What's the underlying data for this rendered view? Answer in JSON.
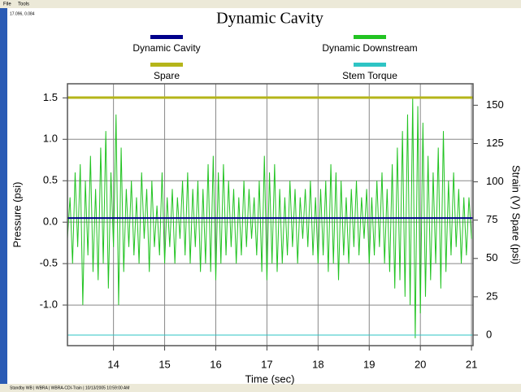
{
  "menu": [
    "File",
    "Tools"
  ],
  "cursor": "17.096, 0.084",
  "status": "Standby WB | WBRA | WBRA-CDI-Train | 10/13/2005 10:59:00 AM",
  "chart_data": {
    "type": "line",
    "title": "Dynamic Cavity",
    "xlabel": "Time (sec)",
    "ylabel": "Pressure (psi)",
    "y2label": "Strain (V) Spare (psi)",
    "xlim": [
      13.1,
      21.03
    ],
    "xticks": [
      14,
      15,
      16,
      17,
      18,
      19,
      20,
      21
    ],
    "ylim": [
      -1.49,
      1.67
    ],
    "yticks": [
      {
        "value": -1,
        "label": "-1.0"
      },
      -0.5,
      {
        "value": 0,
        "label": "0.0"
      },
      0.5,
      {
        "value": 1,
        "label": "1.0"
      },
      1.5
    ],
    "y2lim": [
      -6.9,
      164
    ],
    "y2ticks": [
      0,
      25,
      50,
      75,
      100,
      125,
      150
    ],
    "grid": true,
    "series": [
      {
        "name": "Dynamic Cavity",
        "color": "#00008b",
        "x": [
          13.1,
          21.03
        ],
        "values": [
          0.05,
          0.05
        ]
      },
      {
        "name": "Dynamic Downstream",
        "color": "#22c322",
        "x": [
          13.1,
          13.15,
          13.2,
          13.25,
          13.3,
          13.35,
          13.4,
          13.45,
          13.5,
          13.55,
          13.6,
          13.65,
          13.7,
          13.75,
          13.8,
          13.85,
          13.9,
          13.95,
          14,
          14.05,
          14.1,
          14.15,
          14.2,
          14.25,
          14.3,
          14.35,
          14.4,
          14.45,
          14.5,
          14.55,
          14.6,
          14.65,
          14.7,
          14.75,
          14.8,
          14.85,
          14.9,
          14.95,
          15,
          15.05,
          15.1,
          15.15,
          15.2,
          15.25,
          15.3,
          15.35,
          15.4,
          15.45,
          15.5,
          15.55,
          15.6,
          15.65,
          15.7,
          15.75,
          15.8,
          15.85,
          15.9,
          15.95,
          16,
          16.05,
          16.1,
          16.15,
          16.2,
          16.25,
          16.3,
          16.35,
          16.4,
          16.45,
          16.5,
          16.55,
          16.6,
          16.65,
          16.7,
          16.75,
          16.8,
          16.85,
          16.9,
          16.95,
          17,
          17.05,
          17.1,
          17.15,
          17.2,
          17.25,
          17.3,
          17.35,
          17.4,
          17.45,
          17.5,
          17.55,
          17.6,
          17.65,
          17.7,
          17.75,
          17.8,
          17.85,
          17.9,
          17.95,
          18,
          18.05,
          18.1,
          18.15,
          18.2,
          18.25,
          18.3,
          18.35,
          18.4,
          18.45,
          18.5,
          18.55,
          18.6,
          18.65,
          18.7,
          18.75,
          18.8,
          18.85,
          18.9,
          18.95,
          19,
          19.05,
          19.1,
          19.15,
          19.2,
          19.25,
          19.3,
          19.35,
          19.4,
          19.45,
          19.5,
          19.55,
          19.6,
          19.65,
          19.7,
          19.75,
          19.8,
          19.85,
          19.9,
          19.95,
          20,
          20.05,
          20.1,
          20.15,
          20.2,
          20.25,
          20.3,
          20.35,
          20.4,
          20.45,
          20.5,
          20.55,
          20.6,
          20.65,
          20.7,
          20.75,
          20.8,
          20.85,
          20.9,
          20.95,
          21
        ],
        "values": [
          -0.2,
          0.3,
          -0.5,
          0.6,
          -0.3,
          0.7,
          -1.0,
          0.5,
          -0.4,
          0.8,
          -0.6,
          0.4,
          -0.7,
          0.9,
          -0.5,
          1.1,
          -0.8,
          0.6,
          -0.3,
          1.3,
          -1.0,
          0.9,
          -0.6,
          0.4,
          -0.3,
          0.5,
          -0.4,
          0.3,
          -0.5,
          0.6,
          -0.2,
          0.4,
          -0.6,
          0.5,
          -0.3,
          0.2,
          -0.4,
          0.6,
          -0.5,
          0.3,
          -0.3,
          0.4,
          -0.5,
          0.3,
          -0.2,
          0.5,
          -0.4,
          0.6,
          -0.5,
          0.4,
          -0.3,
          0.5,
          -0.6,
          0.4,
          -0.5,
          0.7,
          -0.6,
          0.8,
          -0.7,
          0.6,
          -0.5,
          0.7,
          -0.4,
          0.5,
          -0.3,
          0.4,
          -0.5,
          0.3,
          -0.4,
          0.5,
          -0.3,
          0.4,
          -0.2,
          0.3,
          -0.4,
          0.5,
          -0.6,
          0.8,
          -0.7,
          0.6,
          -0.5,
          0.7,
          -0.6,
          0.4,
          -0.5,
          0.3,
          -0.4,
          0.5,
          -0.3,
          0.4,
          -0.5,
          0.3,
          -0.2,
          0.4,
          -0.3,
          0.5,
          -0.4,
          0.3,
          -0.5,
          0.4,
          -0.4,
          0.5,
          -0.6,
          0.7,
          -0.5,
          0.6,
          -0.7,
          0.5,
          -0.4,
          0.3,
          -0.5,
          0.4,
          -0.3,
          0.5,
          -0.4,
          0.3,
          -0.2,
          0.4,
          -0.5,
          0.3,
          -0.4,
          0.5,
          -0.3,
          0.6,
          -0.5,
          0.4,
          -0.6,
          0.7,
          -0.8,
          0.9,
          -0.7,
          1.1,
          -0.9,
          1.3,
          -1.0,
          1.5,
          -1.4,
          1.4,
          -1.1,
          1.2,
          -0.9,
          0.8,
          -0.7,
          0.6,
          -0.5,
          0.9,
          -0.8,
          1.1,
          -0.6,
          0.5,
          -0.4,
          0.6,
          -0.3,
          0.4,
          -0.5,
          0.3,
          -0.4,
          0.3,
          -0.2
        ]
      },
      {
        "name": "Spare",
        "color": "#b5b51a",
        "axis": "y2",
        "x": [
          13.1,
          21.03
        ],
        "values": [
          155,
          155
        ]
      },
      {
        "name": "Stem Torque",
        "color": "#2ec4c4",
        "axis": "y2",
        "x": [
          13.1,
          21.03
        ],
        "values": [
          0,
          0
        ]
      }
    ]
  }
}
